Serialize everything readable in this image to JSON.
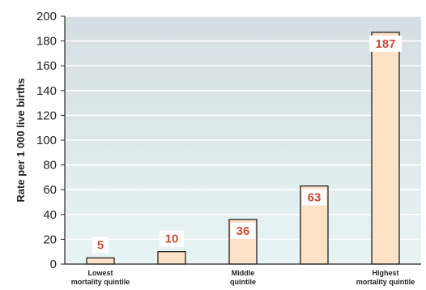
{
  "chart_data": {
    "type": "bar",
    "ylabel": "Rate per 1 000 live births",
    "xlabel": "",
    "ylim": [
      0,
      200
    ],
    "yticks": [
      0,
      20,
      40,
      60,
      80,
      100,
      120,
      140,
      160,
      180,
      200
    ],
    "categories": [
      [
        "Lowest",
        "mortality quintile"
      ],
      [
        "",
        ""
      ],
      [
        "Middle",
        "quintile"
      ],
      [
        "",
        ""
      ],
      [
        "Highest",
        "mortality quintile"
      ]
    ],
    "values": [
      5,
      10,
      36,
      63,
      187
    ],
    "data_labels": [
      "5",
      "10",
      "36",
      "63",
      "187"
    ],
    "grid": true
  },
  "colors": {
    "plot_top": "#d3dde3",
    "plot_bottom": "#e8f4f4",
    "grid": "#ffffff",
    "bar_fill": "#fde2c8",
    "bar_stroke": "#111111",
    "label_text": "#cc4b3a",
    "label_box": "#ffffff",
    "axis": "#222222"
  }
}
